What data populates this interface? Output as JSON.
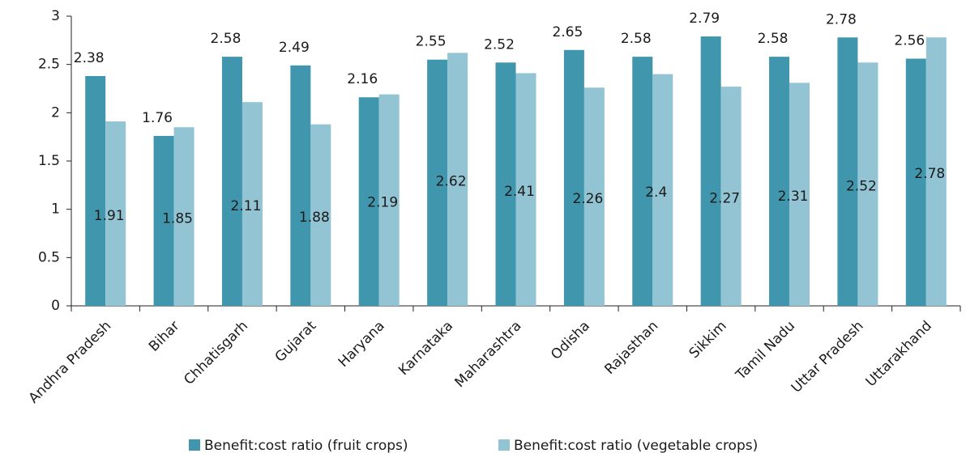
{
  "chart_data": {
    "type": "bar",
    "categories": [
      "Andhra Pradesh",
      "Bihar",
      "Chhatisgarh",
      "Gujarat",
      "Haryana",
      "Karnataka",
      "Maharashtra",
      "Odisha",
      "Rajasthan",
      "Sikkim",
      "Tamil Nadu",
      "Uttar Pradesh",
      "Uttarakhand"
    ],
    "series": [
      {
        "name": "Benefit:cost ratio (fruit crops)",
        "color": "#4097ad",
        "values": [
          2.38,
          1.76,
          2.58,
          2.49,
          2.16,
          2.55,
          2.52,
          2.65,
          2.58,
          2.79,
          2.58,
          2.78,
          2.56
        ]
      },
      {
        "name": "Benefit:cost ratio (vegetable crops)",
        "color": "#93c4d4",
        "values": [
          1.91,
          1.85,
          2.11,
          1.88,
          2.19,
          2.62,
          2.41,
          2.26,
          2.4,
          2.27,
          2.31,
          2.52,
          2.78
        ]
      }
    ],
    "ylim": [
      0,
      3
    ],
    "yticks": [
      0,
      0.5,
      1,
      1.5,
      2,
      2.5,
      3
    ],
    "legend": "bottom"
  }
}
